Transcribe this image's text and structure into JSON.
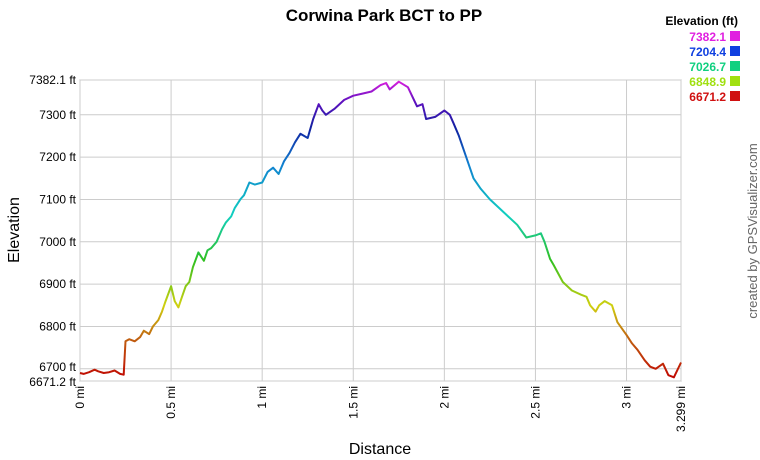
{
  "chart_data": {
    "type": "line",
    "title": "Corwina Park BCT to PP",
    "xlabel": "Distance",
    "ylabel": "Elevation",
    "xlim": [
      0,
      3.299
    ],
    "ylim": [
      6671.2,
      7382.1
    ],
    "grid": true,
    "x_ticks": [
      {
        "value": 0,
        "label": "0 mi"
      },
      {
        "value": 0.5,
        "label": "0.5 mi"
      },
      {
        "value": 1,
        "label": "1 mi"
      },
      {
        "value": 1.5,
        "label": "1.5 mi"
      },
      {
        "value": 2,
        "label": "2 mi"
      },
      {
        "value": 2.5,
        "label": "2.5 mi"
      },
      {
        "value": 3,
        "label": "3 mi"
      },
      {
        "value": 3.299,
        "label": "3.299 mi"
      }
    ],
    "y_ticks": [
      {
        "value": 6671.2,
        "label": "6671.2 ft"
      },
      {
        "value": 6700,
        "label": "6700 ft"
      },
      {
        "value": 6800,
        "label": "6800 ft"
      },
      {
        "value": 6900,
        "label": "6900 ft"
      },
      {
        "value": 7000,
        "label": "7000 ft"
      },
      {
        "value": 7100,
        "label": "7100 ft"
      },
      {
        "value": 7200,
        "label": "7200 ft"
      },
      {
        "value": 7300,
        "label": "7300 ft"
      },
      {
        "value": 7382.1,
        "label": "7382.1 ft"
      }
    ],
    "legend": {
      "title": "Elevation (ft)",
      "position": "top-right",
      "entries": [
        {
          "label": "7382.1",
          "color": "#e020e0"
        },
        {
          "label": "7204.4",
          "color": "#1040e0"
        },
        {
          "label": "7026.7",
          "color": "#10d080"
        },
        {
          "label": "6848.9",
          "color": "#a0e010"
        },
        {
          "label": "6671.2",
          "color": "#d01010"
        }
      ]
    },
    "colors": {
      "low": "#c00000",
      "high": "#e020e0"
    },
    "series": [
      {
        "x": [
          0,
          0.02,
          0.05,
          0.08,
          0.1,
          0.13,
          0.16,
          0.19,
          0.22,
          0.24,
          0.25,
          0.27,
          0.3,
          0.33,
          0.35,
          0.38,
          0.4,
          0.43,
          0.45,
          0.47,
          0.5,
          0.52,
          0.54,
          0.56,
          0.58,
          0.6,
          0.62,
          0.65,
          0.68,
          0.7,
          0.72,
          0.75,
          0.78,
          0.8,
          0.83,
          0.85,
          0.88,
          0.9,
          0.93,
          0.96,
          1,
          1.03,
          1.06,
          1.09,
          1.12,
          1.15,
          1.18,
          1.21,
          1.25,
          1.28,
          1.31,
          1.33,
          1.35,
          1.4,
          1.45,
          1.5,
          1.55,
          1.6,
          1.65,
          1.68,
          1.7,
          1.75,
          1.8,
          1.85,
          1.88,
          1.9,
          1.95,
          2,
          2.03,
          2.05,
          2.08,
          2.12,
          2.16,
          2.2,
          2.25,
          2.3,
          2.35,
          2.4,
          2.45,
          2.5,
          2.53,
          2.55,
          2.58,
          2.6,
          2.65,
          2.7,
          2.75,
          2.78,
          2.8,
          2.83,
          2.85,
          2.88,
          2.92,
          2.95,
          3,
          3.03,
          3.06,
          3.1,
          3.13,
          3.16,
          3.2,
          3.23,
          3.26,
          3.299
        ],
        "y": [
          6690,
          6688,
          6692,
          6698,
          6694,
          6690,
          6692,
          6696,
          6688,
          6686,
          6765,
          6770,
          6765,
          6775,
          6790,
          6782,
          6800,
          6815,
          6835,
          6860,
          6895,
          6860,
          6845,
          6870,
          6895,
          6905,
          6940,
          6975,
          6955,
          6980,
          6985,
          7000,
          7030,
          7045,
          7060,
          7080,
          7100,
          7110,
          7140,
          7135,
          7140,
          7165,
          7175,
          7160,
          7190,
          7210,
          7235,
          7255,
          7245,
          7290,
          7325,
          7310,
          7300,
          7315,
          7335,
          7345,
          7350,
          7355,
          7370,
          7375,
          7360,
          7378,
          7365,
          7320,
          7325,
          7290,
          7295,
          7310,
          7300,
          7280,
          7250,
          7200,
          7150,
          7125,
          7100,
          7080,
          7060,
          7040,
          7010,
          7015,
          7020,
          7000,
          6960,
          6945,
          6905,
          6885,
          6875,
          6870,
          6850,
          6835,
          6850,
          6860,
          6850,
          6810,
          6780,
          6760,
          6745,
          6720,
          6705,
          6700,
          6712,
          6685,
          6680,
          6715
        ]
      }
    ]
  },
  "credit": "created by GPSVisualizer.com"
}
